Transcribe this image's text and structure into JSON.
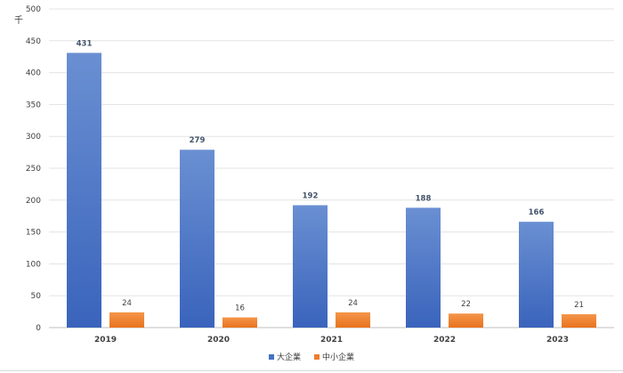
{
  "chart_data": {
    "type": "bar",
    "unit_label": "千",
    "categories": [
      "2019",
      "2020",
      "2021",
      "2022",
      "2023"
    ],
    "series": [
      {
        "name": "大企業",
        "values": [
          431,
          279,
          192,
          188,
          166
        ],
        "color": "#4472c4"
      },
      {
        "name": "中小企業",
        "values": [
          24,
          16,
          24,
          22,
          21
        ],
        "color": "#ed7d31"
      }
    ],
    "yticks": [
      0,
      50,
      100,
      150,
      200,
      250,
      300,
      350,
      400,
      450,
      500
    ],
    "ylim": [
      0,
      500
    ],
    "grid": true,
    "legend_position": "bottom"
  }
}
